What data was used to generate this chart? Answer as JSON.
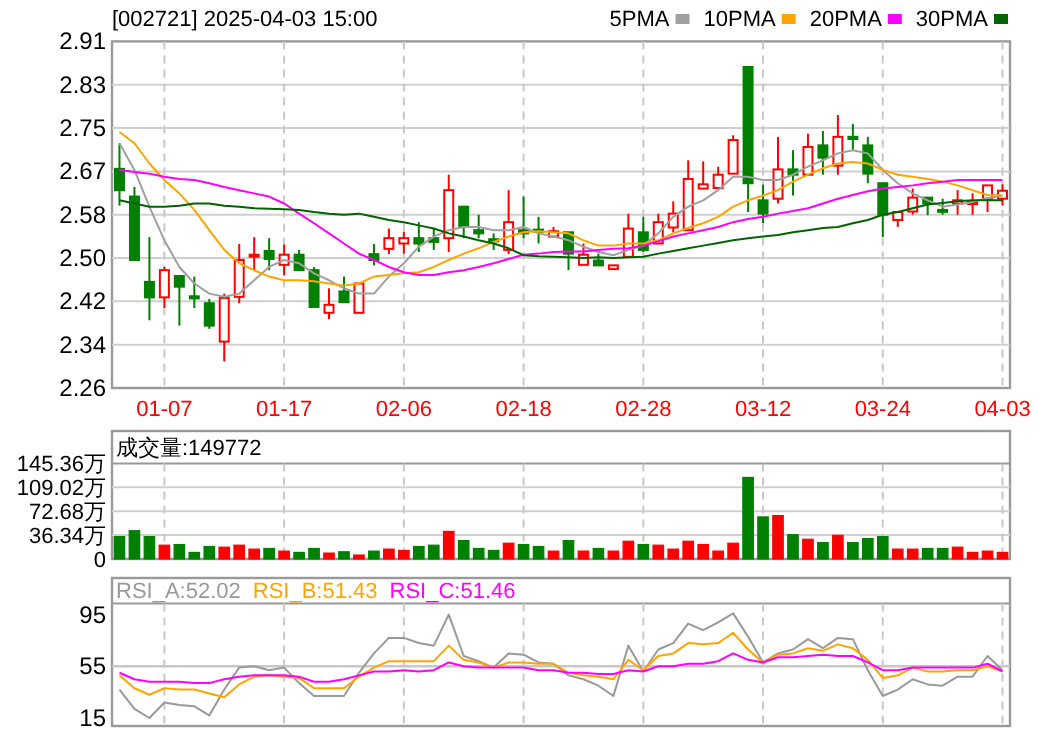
{
  "chart_data": [
    {
      "type": "candlestick",
      "title": "[002721] 2025-04-03 15:00",
      "categories": [
        null,
        null,
        null,
        "01-07",
        null,
        null,
        null,
        null,
        null,
        null,
        null,
        "01-17",
        null,
        null,
        null,
        null,
        null,
        null,
        null,
        "02-06",
        null,
        null,
        null,
        null,
        null,
        null,
        null,
        "02-18",
        null,
        null,
        null,
        null,
        null,
        null,
        null,
        "02-28",
        null,
        null,
        null,
        null,
        null,
        null,
        null,
        "03-12",
        null,
        null,
        null,
        null,
        null,
        null,
        null,
        "03-24",
        null,
        null,
        null,
        null,
        null,
        null,
        null,
        "04-03"
      ],
      "ohlc": [
        [
          2.671,
          2.719,
          2.602,
          2.631
        ],
        [
          2.619,
          2.637,
          2.5,
          2.5
        ],
        [
          2.459,
          2.543,
          2.387,
          2.43
        ],
        [
          2.43,
          2.487,
          2.41,
          2.481
        ],
        [
          2.47,
          2.47,
          2.377,
          2.45
        ],
        [
          2.432,
          2.469,
          2.41,
          2.428
        ],
        [
          2.419,
          2.427,
          2.371,
          2.377
        ],
        [
          2.347,
          2.437,
          2.31,
          2.429
        ],
        [
          2.431,
          2.53,
          2.419,
          2.5
        ],
        [
          2.508,
          2.543,
          2.481,
          2.51
        ],
        [
          2.517,
          2.541,
          2.481,
          2.502
        ],
        [
          2.491,
          2.529,
          2.471,
          2.51
        ],
        [
          2.51,
          2.519,
          2.481,
          2.481
        ],
        [
          2.481,
          2.487,
          2.412,
          2.412
        ],
        [
          2.401,
          2.447,
          2.389,
          2.416
        ],
        [
          2.441,
          2.469,
          2.421,
          2.421
        ],
        [
          2.401,
          2.456,
          2.401,
          2.456
        ],
        [
          2.511,
          2.53,
          2.49,
          2.5
        ],
        [
          2.521,
          2.559,
          2.511,
          2.541
        ],
        [
          2.531,
          2.553,
          2.512,
          2.541
        ],
        [
          2.541,
          2.571,
          2.515,
          2.531
        ],
        [
          2.541,
          2.559,
          2.519,
          2.534
        ],
        [
          2.541,
          2.66,
          2.515,
          2.631
        ],
        [
          2.6,
          2.6,
          2.541,
          2.562
        ],
        [
          2.556,
          2.585,
          2.541,
          2.55
        ],
        [
          2.539,
          2.55,
          2.519,
          2.535
        ],
        [
          2.519,
          2.631,
          2.511,
          2.571
        ],
        [
          2.556,
          2.619,
          2.541,
          2.55
        ],
        [
          2.557,
          2.581,
          2.531,
          2.553
        ],
        [
          2.544,
          2.562,
          2.544,
          2.554
        ],
        [
          2.552,
          2.552,
          2.481,
          2.512
        ],
        [
          2.491,
          2.531,
          2.491,
          2.51
        ],
        [
          2.499,
          2.512,
          2.49,
          2.49
        ],
        [
          2.483,
          2.49,
          2.483,
          2.49
        ],
        [
          2.506,
          2.587,
          2.506,
          2.559
        ],
        [
          2.552,
          2.581,
          2.515,
          2.519
        ],
        [
          2.531,
          2.587,
          2.531,
          2.571
        ],
        [
          2.561,
          2.61,
          2.552,
          2.587
        ],
        [
          2.556,
          2.687,
          2.556,
          2.652
        ],
        [
          2.634,
          2.685,
          2.634,
          2.642
        ],
        [
          2.635,
          2.675,
          2.635,
          2.66
        ],
        [
          2.662,
          2.734,
          2.662,
          2.725
        ],
        [
          2.862,
          2.862,
          2.59,
          2.644
        ],
        [
          2.612,
          2.641,
          2.569,
          2.587
        ],
        [
          2.615,
          2.731,
          2.606,
          2.67
        ],
        [
          2.67,
          2.706,
          2.621,
          2.66
        ],
        [
          2.66,
          2.737,
          2.66,
          2.712
        ],
        [
          2.715,
          2.742,
          2.66,
          2.692
        ],
        [
          2.677,
          2.772,
          2.66,
          2.731
        ],
        [
          2.731,
          2.755,
          2.706,
          2.727
        ],
        [
          2.715,
          2.731,
          2.644,
          2.662
        ],
        [
          2.644,
          2.644,
          2.543,
          2.585
        ],
        [
          2.575,
          2.59,
          2.562,
          2.59
        ],
        [
          2.591,
          2.634,
          2.585,
          2.617
        ],
        [
          2.617,
          2.617,
          2.584,
          2.606
        ],
        [
          2.594,
          2.615,
          2.585,
          2.591
        ],
        [
          2.606,
          2.631,
          2.585,
          2.612
        ],
        [
          2.605,
          2.625,
          2.585,
          2.609
        ],
        [
          2.615,
          2.64,
          2.59,
          2.64
        ],
        [
          2.615,
          2.642,
          2.602,
          2.63
        ]
      ],
      "colors": [
        "#008000",
        "#008000",
        "#008000",
        "#ff0000",
        "#008000",
        "#008000",
        "#008000",
        "#ff0000",
        "#ff0000",
        "#ff0000",
        "#008000",
        "#ff0000",
        "#008000",
        "#008000",
        "#ff0000",
        "#008000",
        "#ff0000",
        "#008000",
        "#ff0000",
        "#ff0000",
        "#008000",
        "#008000",
        "#ff0000",
        "#008000",
        "#008000",
        "#008000",
        "#ff0000",
        "#008000",
        "#008000",
        "#ff0000",
        "#008000",
        "#ff0000",
        "#008000",
        "#ff0000",
        "#ff0000",
        "#008000",
        "#ff0000",
        "#ff0000",
        "#ff0000",
        "#ff0000",
        "#ff0000",
        "#ff0000",
        "#008000",
        "#008000",
        "#ff0000",
        "#008000",
        "#ff0000",
        "#008000",
        "#ff0000",
        "#008000",
        "#008000",
        "#008000",
        "#ff0000",
        "#ff0000",
        "#008000",
        "#008000",
        "#ff0000",
        "#ff0000",
        "#ff0000",
        "#ff0000"
      ],
      "series": [
        {
          "name": "5PMA",
          "type": "line",
          "color": "#a0a0a0",
          "values": [
            2.719,
            2.669,
            2.6,
            2.537,
            2.487,
            2.456,
            2.437,
            2.431,
            2.437,
            2.462,
            2.487,
            2.5,
            2.494,
            2.475,
            2.462,
            2.447,
            2.437,
            2.437,
            2.469,
            2.494,
            2.525,
            2.544,
            2.556,
            2.562,
            2.562,
            2.556,
            2.556,
            2.562,
            2.55,
            2.544,
            2.537,
            2.525,
            2.515,
            2.509,
            2.519,
            2.527,
            2.55,
            2.581,
            2.6,
            2.612,
            2.631,
            2.656,
            2.656,
            2.65,
            2.65,
            2.66,
            2.675,
            2.687,
            2.7,
            2.706,
            2.7,
            2.669,
            2.644,
            2.625,
            2.612,
            2.6,
            2.604,
            2.609,
            2.616,
            2.621
          ]
        },
        {
          "name": "10PMA",
          "type": "line",
          "color": "#ffa500",
          "values": [
            2.74,
            2.719,
            2.681,
            2.65,
            2.625,
            2.594,
            2.556,
            2.519,
            2.494,
            2.481,
            2.469,
            2.462,
            2.462,
            2.46,
            2.456,
            2.452,
            2.456,
            2.469,
            2.472,
            2.475,
            2.477,
            2.487,
            2.5,
            2.512,
            2.522,
            2.534,
            2.544,
            2.552,
            2.554,
            2.552,
            2.55,
            2.537,
            2.527,
            2.527,
            2.531,
            2.531,
            2.537,
            2.55,
            2.56,
            2.569,
            2.581,
            2.6,
            2.612,
            2.621,
            2.631,
            2.647,
            2.66,
            2.672,
            2.681,
            2.684,
            2.681,
            2.669,
            2.66,
            2.656,
            2.652,
            2.647,
            2.64,
            2.631,
            2.622,
            2.621
          ]
        },
        {
          "name": "20PMA",
          "type": "line",
          "color": "#ff00ff",
          "values": [
            2.669,
            2.665,
            2.662,
            2.656,
            2.652,
            2.65,
            2.644,
            2.637,
            2.631,
            2.625,
            2.619,
            2.606,
            2.587,
            2.569,
            2.55,
            2.531,
            2.512,
            2.5,
            2.487,
            2.477,
            2.472,
            2.472,
            2.477,
            2.481,
            2.487,
            2.494,
            2.502,
            2.51,
            2.512,
            2.515,
            2.516,
            2.516,
            2.519,
            2.521,
            2.522,
            2.527,
            2.535,
            2.544,
            2.55,
            2.556,
            2.562,
            2.571,
            2.577,
            2.581,
            2.587,
            2.592,
            2.597,
            2.606,
            2.615,
            2.622,
            2.629,
            2.634,
            2.637,
            2.64,
            2.644,
            2.647,
            2.65,
            2.65,
            2.65,
            2.65
          ]
        },
        {
          "name": "30PMA",
          "type": "line",
          "color": "#006400",
          "values": [
            2.612,
            2.606,
            2.6,
            2.6,
            2.602,
            2.606,
            2.606,
            2.602,
            2.6,
            2.597,
            2.596,
            2.595,
            2.594,
            2.59,
            2.587,
            2.585,
            2.587,
            2.581,
            2.575,
            2.571,
            2.565,
            2.559,
            2.55,
            2.544,
            2.537,
            2.531,
            2.522,
            2.509,
            2.507,
            2.506,
            2.505,
            2.504,
            2.505,
            2.504,
            2.505,
            2.506,
            2.512,
            2.517,
            2.522,
            2.527,
            2.532,
            2.537,
            2.541,
            2.544,
            2.547,
            2.552,
            2.556,
            2.56,
            2.562,
            2.569,
            2.575,
            2.585,
            2.59,
            2.597,
            2.604,
            2.607,
            2.61,
            2.612,
            2.612,
            2.612
          ]
        }
      ],
      "ylim": [
        2.26,
        2.91
      ],
      "yticks": [
        {
          "value": 2.26,
          "label": "2.26"
        },
        {
          "value": 2.34125,
          "label": "2.34"
        },
        {
          "value": 2.4225,
          "label": "2.42"
        },
        {
          "value": 2.50375,
          "label": "2.50"
        },
        {
          "value": 2.585,
          "label": "2.58"
        },
        {
          "value": 2.66625,
          "label": "2.67"
        },
        {
          "value": 2.7475,
          "label": "2.75"
        },
        {
          "value": 2.82875,
          "label": "2.83"
        },
        {
          "value": 2.91,
          "label": "2.91"
        }
      ],
      "grid": true,
      "legend": "top right"
    },
    {
      "type": "bar",
      "title": "成交量:149772",
      "categories": [
        null,
        null,
        null,
        null,
        null,
        null,
        null,
        null,
        null,
        null,
        null,
        null,
        null,
        null,
        null,
        null,
        null,
        null,
        null,
        null,
        null,
        null,
        null,
        null,
        null,
        null,
        null,
        null,
        null,
        null,
        null,
        null,
        null,
        null,
        null,
        null,
        null,
        null,
        null,
        null,
        null,
        null,
        null,
        null,
        null,
        null,
        null,
        null,
        null,
        null,
        null,
        null,
        null,
        null,
        null,
        null,
        null,
        null,
        null,
        null
      ],
      "values": [
        34,
        43,
        34,
        21,
        22,
        10,
        19,
        18,
        21,
        15,
        16,
        12,
        10,
        16,
        9,
        11,
        6,
        12,
        15,
        13,
        19,
        21,
        42,
        28,
        16,
        13,
        24,
        22,
        19,
        12,
        28,
        12,
        16,
        12,
        27,
        22,
        21,
        15,
        27,
        22,
        12,
        24,
        124,
        64,
        66,
        37,
        30,
        25,
        36,
        25,
        31,
        34,
        15,
        15,
        16,
        16,
        18,
        10,
        12,
        10
      ],
      "colors": [
        "#008000",
        "#008000",
        "#008000",
        "#ff0000",
        "#008000",
        "#008000",
        "#008000",
        "#ff0000",
        "#ff0000",
        "#ff0000",
        "#008000",
        "#ff0000",
        "#008000",
        "#008000",
        "#ff0000",
        "#008000",
        "#ff0000",
        "#008000",
        "#ff0000",
        "#ff0000",
        "#008000",
        "#008000",
        "#ff0000",
        "#008000",
        "#008000",
        "#008000",
        "#ff0000",
        "#008000",
        "#008000",
        "#ff0000",
        "#008000",
        "#ff0000",
        "#008000",
        "#ff0000",
        "#ff0000",
        "#008000",
        "#ff0000",
        "#ff0000",
        "#ff0000",
        "#ff0000",
        "#ff0000",
        "#ff0000",
        "#008000",
        "#008000",
        "#ff0000",
        "#008000",
        "#ff0000",
        "#008000",
        "#ff0000",
        "#008000",
        "#008000",
        "#008000",
        "#ff0000",
        "#ff0000",
        "#008000",
        "#008000",
        "#ff0000",
        "#ff0000",
        "#ff0000",
        "#ff0000"
      ],
      "ylim": [
        0,
        145.36
      ],
      "yticks": [
        0,
        {
          "value": 36.34,
          "label": "36.34万"
        },
        {
          "value": 72.68,
          "label": "72.68万"
        },
        {
          "value": 109.02,
          "label": "109.02万"
        },
        {
          "value": 145.36,
          "label": "145.36万"
        }
      ],
      "grid": true,
      "tick_labels": "y"
    },
    {
      "type": "line",
      "categories": [
        null,
        null,
        null,
        null,
        null,
        null,
        null,
        null,
        null,
        null,
        null,
        null,
        null,
        null,
        null,
        null,
        null,
        null,
        null,
        null,
        null,
        null,
        null,
        null,
        null,
        null,
        null,
        null,
        null,
        null,
        null,
        null,
        null,
        null,
        null,
        null,
        null,
        null,
        null,
        null,
        null,
        null,
        null,
        null,
        null,
        null,
        null,
        null,
        null,
        null,
        null,
        null,
        null,
        null,
        null,
        null,
        null,
        null,
        null,
        null
      ],
      "series": [
        {
          "name": "RSI_A:52.02",
          "color": "#999999",
          "values": [
            37,
            22,
            15,
            27,
            25,
            24,
            17,
            37,
            54,
            55,
            52,
            54,
            42,
            32,
            32,
            32,
            50,
            65,
            77,
            77,
            73,
            71,
            95,
            63,
            59,
            54,
            65,
            64,
            58,
            57,
            48,
            45,
            40,
            32,
            71,
            51,
            68,
            73,
            88,
            83,
            89,
            96,
            78,
            58,
            65,
            68,
            76,
            69,
            77,
            76,
            52,
            32,
            37,
            45,
            41,
            40,
            47,
            47,
            63,
            52
          ]
        },
        {
          "name": "RSI_B:51.43",
          "color": "#ffa500",
          "values": [
            48,
            38,
            33,
            38,
            37,
            37,
            34,
            31,
            41,
            47,
            48,
            47,
            46,
            38,
            38,
            38,
            47,
            54,
            59,
            59,
            59,
            59,
            71,
            60,
            58,
            54,
            58,
            58,
            57,
            57,
            50,
            48,
            47,
            45,
            60,
            52,
            63,
            65,
            73,
            72,
            73,
            81,
            68,
            58,
            64,
            65,
            69,
            67,
            72,
            69,
            60,
            46,
            48,
            54,
            51,
            51,
            52,
            52,
            55,
            51
          ]
        },
        {
          "name": "RSI_C:51.46",
          "color": "#ff00ff",
          "values": [
            50,
            45,
            43,
            43,
            43,
            42,
            42,
            45,
            47,
            48,
            48,
            48,
            47,
            43,
            43,
            45,
            48,
            51,
            51,
            52,
            51,
            52,
            58,
            55,
            54,
            54,
            54,
            54,
            52,
            52,
            50,
            50,
            49,
            49,
            52,
            51,
            55,
            55,
            57,
            57,
            59,
            65,
            60,
            58,
            62,
            62,
            63,
            64,
            63,
            63,
            58,
            52,
            52,
            54,
            54,
            54,
            54,
            54,
            57,
            51
          ]
        }
      ],
      "ylim": [
        8.8,
        103.7
      ],
      "yticks": [
        15,
        55,
        95
      ],
      "ref_lines": [
        {
          "axis": "y",
          "value": 55,
          "color": "#c8c8c8"
        }
      ],
      "grid": "x",
      "legend": "top left",
      "tick_labels": "y"
    }
  ]
}
